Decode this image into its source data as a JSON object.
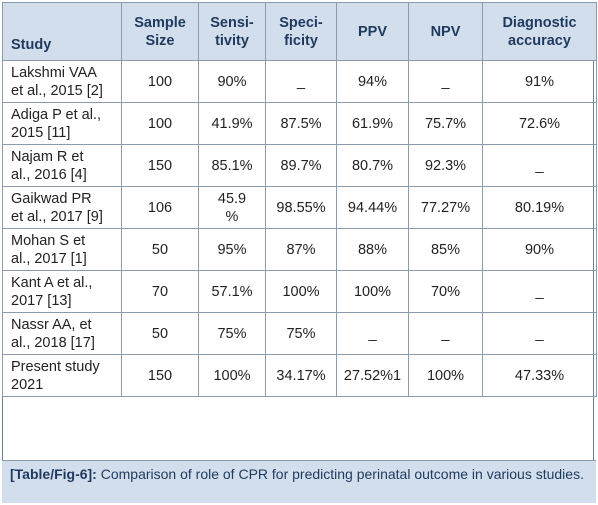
{
  "table": {
    "headers": [
      "Study",
      "Sample\nSize",
      "Sensi-\ntivity",
      "Speci-\nficity",
      "PPV",
      "NPV",
      "Diagnostic\naccuracy"
    ],
    "rows": [
      [
        "Lakshmi VAA\net al., 2015 [2]",
        "100",
        "90%",
        "_",
        "94%",
        "_",
        "91%"
      ],
      [
        "Adiga P et al.,\n2015 [11]",
        "100",
        "41.9%",
        "87.5%",
        "61.9%",
        "75.7%",
        "72.6%"
      ],
      [
        "Najam R et\nal., 2016 [4]",
        "150",
        "85.1%",
        "89.7%",
        "80.7%",
        "92.3%",
        "_"
      ],
      [
        "Gaikwad PR\net al., 2017 [9]",
        "106",
        "45.9\n%",
        "98.55%",
        "94.44%",
        "77.27%",
        "80.19%"
      ],
      [
        "Mohan S et\nal., 2017 [1]",
        "50",
        "95%",
        "87%",
        "88%",
        "85%",
        "90%"
      ],
      [
        "Kant A et al.,\n2017 [13]",
        "70",
        "57.1%",
        "100%",
        "100%",
        "70%",
        "_"
      ],
      [
        "Nassr AA, et\nal., 2018 [17]",
        "50",
        "75%",
        "75%",
        "_",
        "_",
        "_"
      ],
      [
        "Present study\n2021",
        "150",
        "100%",
        "34.17%",
        "27.52%1",
        "100%",
        "47.33%"
      ]
    ]
  },
  "caption": {
    "label": "[Table/Fig-6]:",
    "text": " Comparison of role of CPR for predicting perinatal outcome in various studies."
  },
  "colors": {
    "header_bg": "#d3deec",
    "header_text": "#1e3a5f",
    "grid": "#8a9bb0"
  }
}
